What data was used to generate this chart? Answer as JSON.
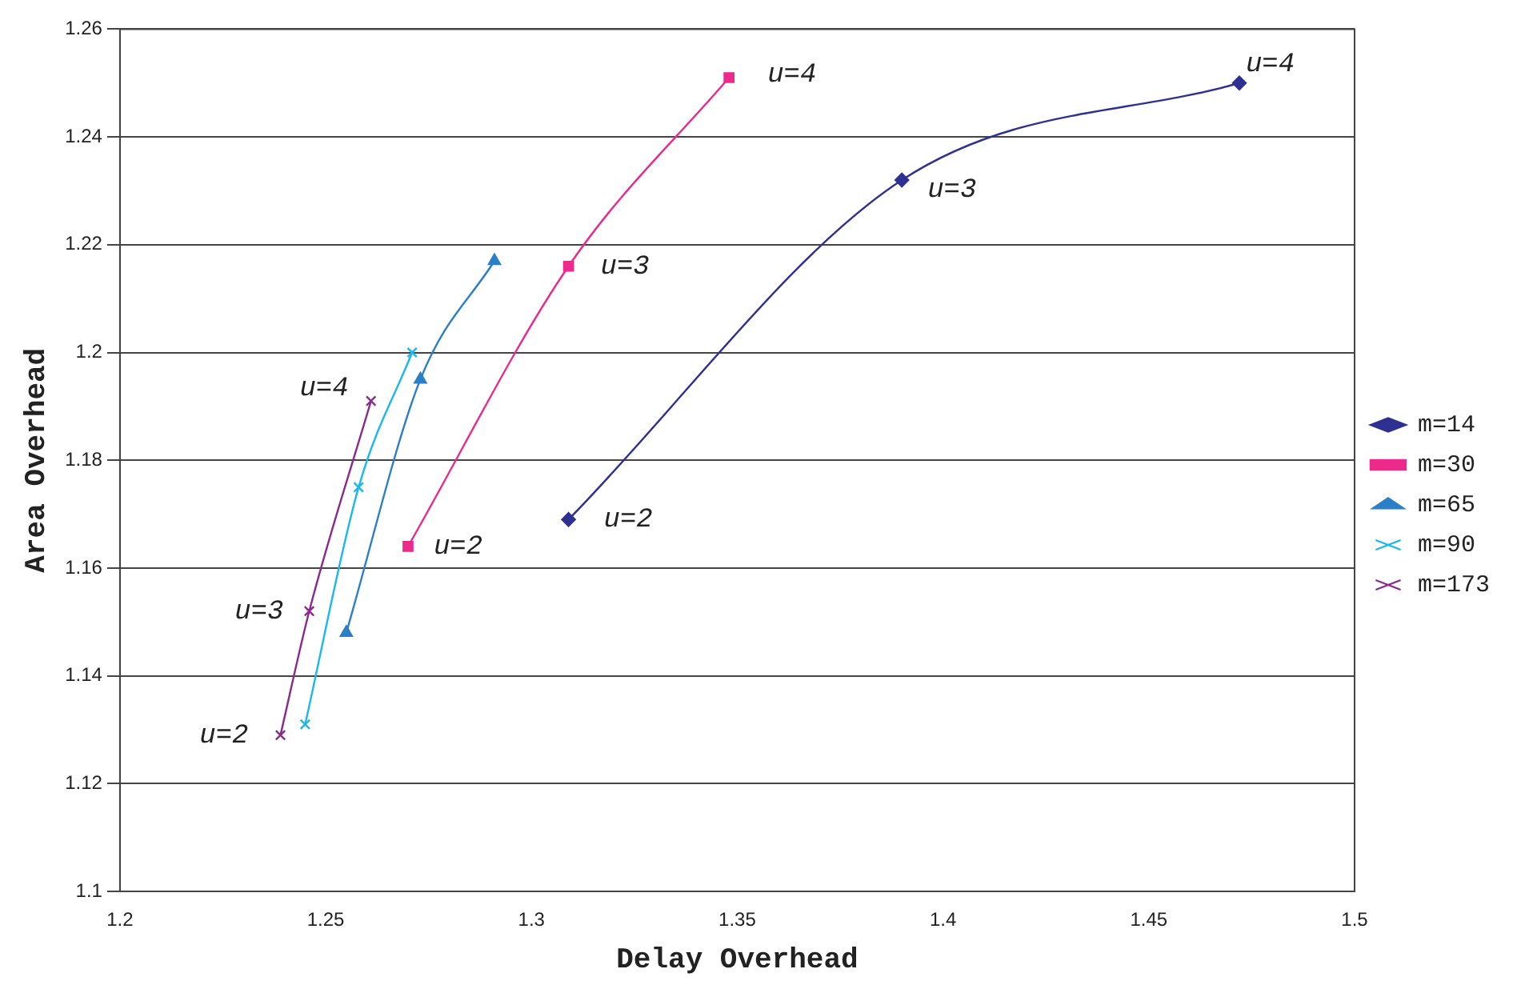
{
  "chart_data": {
    "type": "line",
    "xlabel": "Delay Overhead",
    "ylabel": "Area Overhead",
    "xlim": [
      1.2,
      1.5
    ],
    "xticks": [
      1.2,
      1.25,
      1.3,
      1.35,
      1.4,
      1.45,
      1.5
    ],
    "ylim": [
      1.1,
      1.26
    ],
    "yticks": [
      1.1,
      1.12,
      1.14,
      1.16,
      1.18,
      1.2,
      1.22,
      1.24,
      1.26
    ],
    "grid": "y",
    "legend": "right",
    "line_style": "solid",
    "series": [
      {
        "name": "m=14",
        "color": "#2e3192",
        "marker": "diamond",
        "x": [
          1.309,
          1.39,
          1.472
        ],
        "values": [
          1.169,
          1.232,
          1.25
        ]
      },
      {
        "name": "m=30",
        "color": "#ec2a8c",
        "marker": "square",
        "x": [
          1.27,
          1.309,
          1.348
        ],
        "values": [
          1.164,
          1.216,
          1.251
        ]
      },
      {
        "name": "m=65",
        "color": "#2a7fc8",
        "marker": "triangle",
        "x": [
          1.255,
          1.273,
          1.291
        ],
        "values": [
          1.148,
          1.195,
          1.217
        ]
      },
      {
        "name": "m=90",
        "color": "#1ab8ec",
        "marker": "cross",
        "x": [
          1.245,
          1.258,
          1.271
        ],
        "values": [
          1.131,
          1.175,
          1.2
        ]
      },
      {
        "name": "m=173",
        "color": "#8a2a8a",
        "marker": "cross",
        "x": [
          1.239,
          1.246,
          1.261
        ],
        "values": [
          1.129,
          1.152,
          1.191
        ]
      }
    ],
    "annotations": [
      {
        "text": "u=2",
        "x": 1.309,
        "y": 1.169
      },
      {
        "text": "u=3",
        "x": 1.39,
        "y": 1.232
      },
      {
        "text": "u=4",
        "x": 1.472,
        "y": 1.25
      },
      {
        "text": "u=2",
        "x": 1.27,
        "y": 1.164
      },
      {
        "text": "u=3",
        "x": 1.309,
        "y": 1.216
      },
      {
        "text": "u=4",
        "x": 1.348,
        "y": 1.251
      },
      {
        "text": "u=2",
        "x": 1.239,
        "y": 1.129
      },
      {
        "text": "u=3",
        "x": 1.246,
        "y": 1.152
      },
      {
        "text": "u=4",
        "x": 1.261,
        "y": 1.191
      }
    ]
  }
}
